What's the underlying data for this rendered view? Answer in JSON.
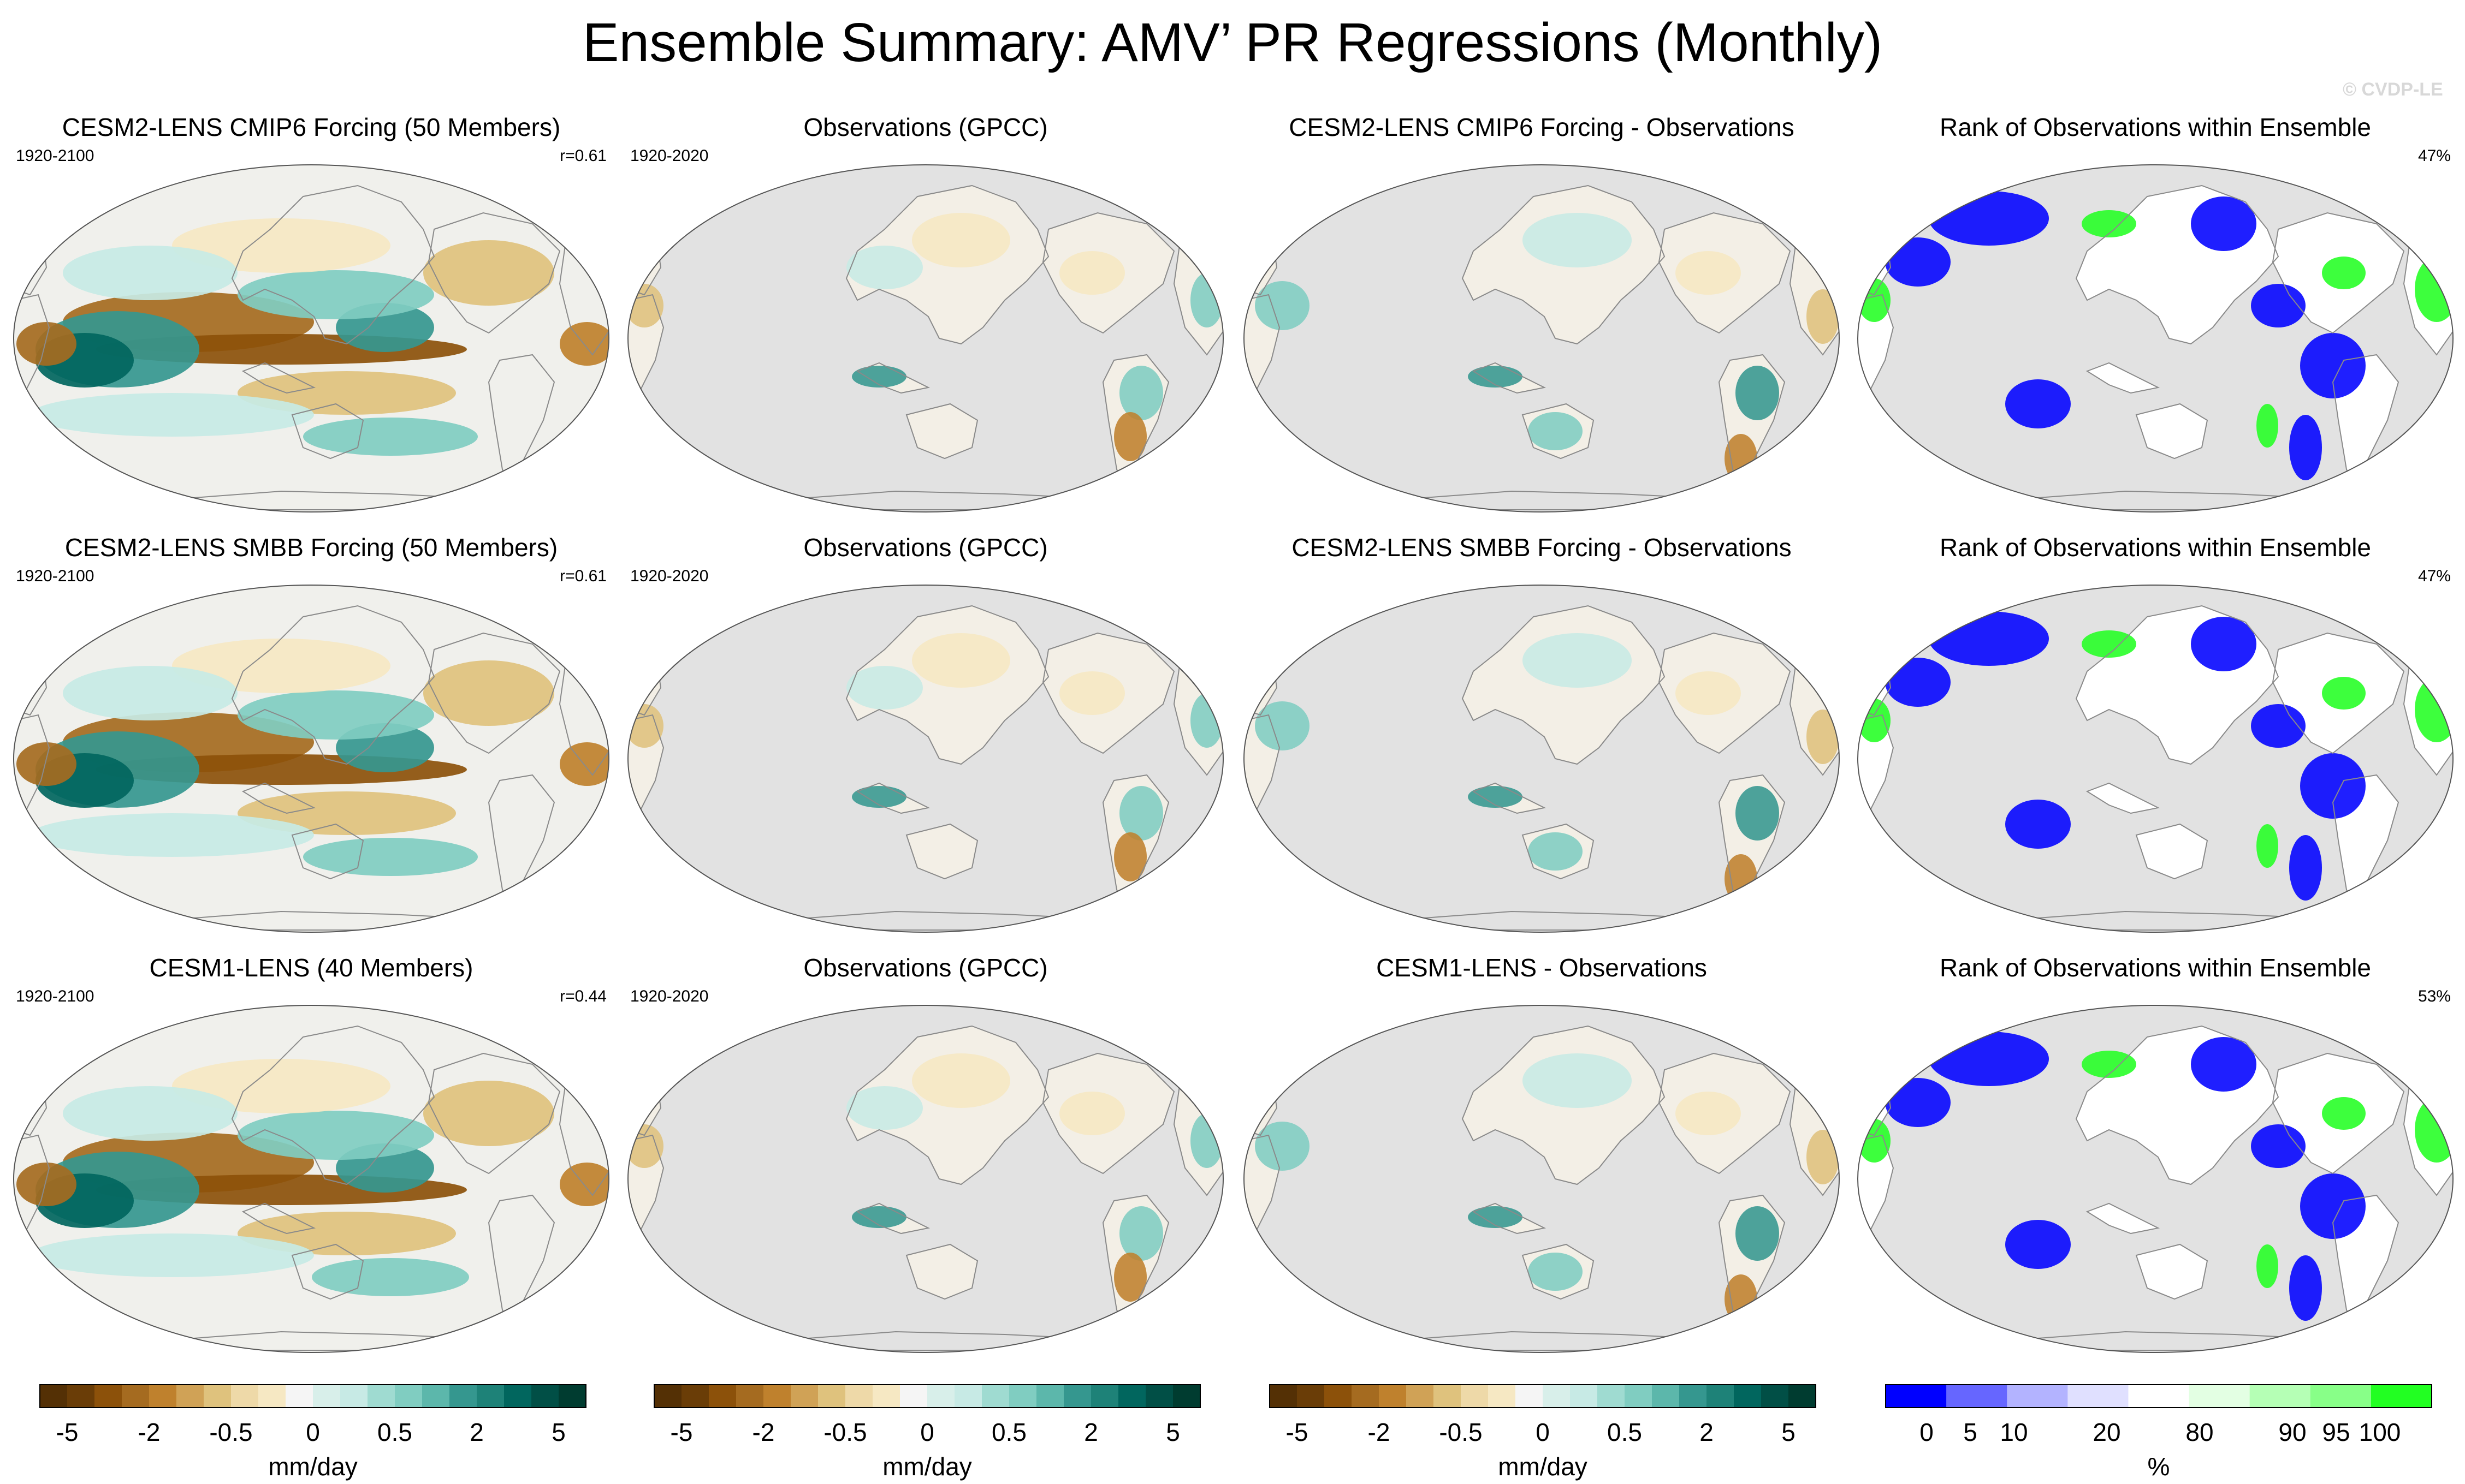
{
  "title": "Ensemble Summary: AMV’ PR Regressions (Monthly)",
  "watermark": "© CVDP-LE",
  "rows": [
    {
      "model": {
        "title": "CESM2-LENS CMIP6 Forcing (50 Members)",
        "years": "1920-2100",
        "stat": "r=0.61"
      },
      "obs": {
        "title": "Observations (GPCC)",
        "years": "1920-2020"
      },
      "diff": {
        "title": "CESM2-LENS CMIP6 Forcing - Observations"
      },
      "rank": {
        "title": "Rank of Observations within Ensemble",
        "stat": "47%"
      }
    },
    {
      "model": {
        "title": "CESM2-LENS SMBB Forcing (50 Members)",
        "years": "1920-2100",
        "stat": "r=0.61"
      },
      "obs": {
        "title": "Observations (GPCC)",
        "years": "1920-2020"
      },
      "diff": {
        "title": "CESM2-LENS SMBB Forcing - Observations"
      },
      "rank": {
        "title": "Rank of Observations within Ensemble",
        "stat": "47%"
      }
    },
    {
      "model": {
        "title": "CESM1-LENS (40 Members)",
        "years": "1920-2100",
        "stat": "r=0.44"
      },
      "obs": {
        "title": "Observations (GPCC)",
        "years": "1920-2020"
      },
      "diff": {
        "title": "CESM1-LENS - Observations"
      },
      "rank": {
        "title": "Rank of Observations within Ensemble",
        "stat": "53%"
      }
    }
  ],
  "colorbars": {
    "precip": {
      "unit": "mm/day",
      "colors": [
        "#543005",
        "#6a3d07",
        "#8c510a",
        "#a56b20",
        "#bf812d",
        "#d0a256",
        "#dfc27d",
        "#eed9a8",
        "#f6e8c3",
        "#f5f5f5",
        "#d8efea",
        "#c7eae5",
        "#9fdbd1",
        "#80cdc1",
        "#5cb7ab",
        "#35978f",
        "#1e8278",
        "#01665e",
        "#014f46",
        "#003c30"
      ],
      "ticks": [
        "-5",
        "-2",
        "-0.5",
        "0",
        "0.5",
        "2",
        "5"
      ]
    },
    "rank": {
      "unit": "%",
      "colors": [
        "#0000ff",
        "#6666ff",
        "#b3b3ff",
        "#e0e0ff",
        "#ffffff",
        "#e3ffe3",
        "#b5ffb5",
        "#88ff88",
        "#22ff22"
      ],
      "ticks": [
        "0",
        "5",
        "10",
        "20",
        "80",
        "90",
        "95",
        "100"
      ]
    }
  }
}
